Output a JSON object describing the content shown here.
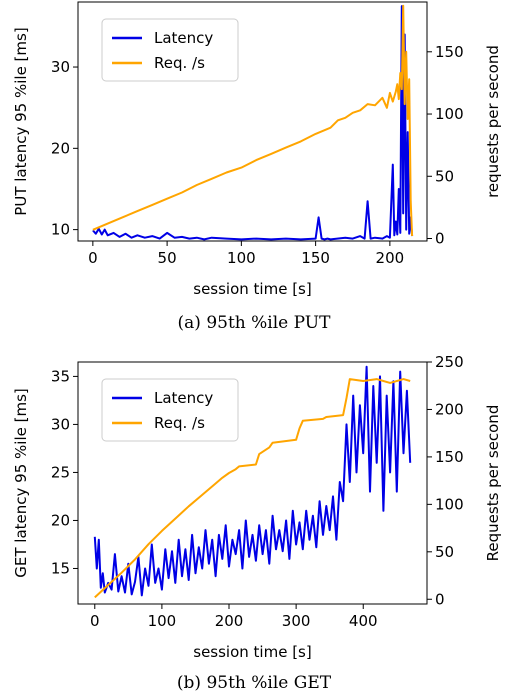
{
  "colors": {
    "latency": "#0000e6",
    "requests": "#ffa500"
  },
  "chart_data": [
    {
      "type": "line",
      "caption": "(a) 95th %ile PUT",
      "xlabel": "session time [s]",
      "ylabel_left": "PUT latency 95 %ile [ms]",
      "ylabel_right": "requests per second",
      "xlim": [
        -10,
        225
      ],
      "ylim_left": [
        8.6,
        38.0
      ],
      "ylim_right": [
        -2,
        190
      ],
      "xticks": [
        0,
        50,
        100,
        150,
        200
      ],
      "yticks_left": [
        10,
        20,
        30
      ],
      "yticks_right": [
        0,
        50,
        100,
        150
      ],
      "legend": {
        "position": "top-left",
        "entries": [
          "Latency",
          "Req. /s"
        ]
      },
      "series": [
        {
          "name": "Latency",
          "axis": "left",
          "x": [
            0,
            2,
            4,
            6,
            8,
            10,
            14,
            18,
            22,
            26,
            30,
            35,
            40,
            45,
            50,
            55,
            60,
            65,
            70,
            75,
            80,
            90,
            100,
            110,
            120,
            130,
            140,
            150,
            152,
            154,
            156,
            158,
            160,
            170,
            175,
            180,
            183,
            185,
            187,
            190,
            195,
            198,
            200,
            202,
            203,
            204,
            205,
            206,
            207,
            208,
            209,
            210,
            211,
            212,
            213,
            214,
            215
          ],
          "y": [
            9.9,
            9.5,
            10.1,
            9.4,
            10.0,
            9.3,
            9.6,
            9.1,
            9.5,
            9.0,
            9.3,
            9.0,
            9.2,
            8.9,
            9.6,
            9.0,
            9.1,
            8.9,
            9.0,
            8.8,
            9.0,
            8.9,
            8.8,
            8.9,
            8.8,
            8.9,
            8.8,
            8.9,
            11.5,
            8.9,
            8.8,
            8.9,
            8.8,
            9.0,
            8.9,
            9.2,
            8.9,
            13.5,
            8.9,
            9.0,
            8.9,
            9.2,
            9.0,
            18.0,
            9.3,
            11.0,
            9.4,
            15.0,
            9.6,
            37.5,
            12.0,
            34.0,
            10.0,
            22.0,
            9.5,
            11.5,
            9.2
          ]
        },
        {
          "name": "Req. /s",
          "axis": "right",
          "x": [
            0,
            10,
            20,
            30,
            40,
            50,
            60,
            70,
            80,
            90,
            100,
            110,
            120,
            130,
            140,
            150,
            160,
            165,
            170,
            175,
            180,
            185,
            190,
            195,
            198,
            200,
            202,
            204,
            205,
            206,
            207,
            208,
            209,
            210,
            211,
            212,
            213,
            214,
            215
          ],
          "y": [
            7,
            12,
            17,
            22,
            27,
            32,
            37,
            43,
            48,
            53,
            57,
            63,
            68,
            73,
            78,
            84,
            89,
            95,
            97,
            101,
            103,
            108,
            107,
            113,
            105,
            117,
            110,
            118,
            124,
            112,
            133,
            120,
            187,
            108,
            150,
            96,
            128,
            30,
            2
          ]
        }
      ]
    },
    {
      "type": "line",
      "caption": "(b) 95th %ile GET",
      "xlabel": "session time [s]",
      "ylabel_left": "GET latency 95 %ile [ms]",
      "ylabel_right": "Requests per second",
      "xlim": [
        -25,
        495
      ],
      "ylim_left": [
        11.3,
        36.5
      ],
      "ylim_right": [
        -5,
        250
      ],
      "xticks": [
        0,
        100,
        200,
        300,
        400
      ],
      "yticks_left": [
        15,
        20,
        25,
        30,
        35
      ],
      "yticks_right": [
        0,
        50,
        100,
        150,
        200,
        250
      ],
      "legend": {
        "position": "top-left",
        "entries": [
          "Latency",
          "Req. /s"
        ]
      },
      "series": [
        {
          "name": "Latency",
          "axis": "left",
          "x": [
            0,
            3,
            6,
            9,
            12,
            15,
            20,
            25,
            30,
            35,
            40,
            45,
            50,
            55,
            60,
            65,
            70,
            75,
            80,
            85,
            90,
            95,
            100,
            105,
            110,
            115,
            120,
            125,
            130,
            135,
            140,
            145,
            150,
            155,
            160,
            165,
            170,
            175,
            180,
            185,
            190,
            195,
            200,
            205,
            210,
            215,
            220,
            225,
            230,
            235,
            240,
            245,
            250,
            255,
            260,
            265,
            270,
            275,
            280,
            285,
            290,
            295,
            300,
            305,
            310,
            315,
            320,
            325,
            330,
            335,
            340,
            345,
            350,
            355,
            360,
            365,
            370,
            375,
            380,
            385,
            390,
            395,
            400,
            405,
            410,
            415,
            420,
            425,
            430,
            435,
            440,
            445,
            450,
            455,
            460,
            465,
            470
          ],
          "y": [
            18.3,
            15.0,
            18.0,
            13.0,
            14.5,
            12.5,
            13.5,
            12.8,
            16.5,
            12.6,
            14.2,
            12.5,
            15.5,
            12.3,
            13.6,
            16.2,
            12.2,
            15.0,
            13.2,
            17.5,
            13.5,
            15.0,
            12.8,
            17.0,
            14.0,
            16.8,
            13.5,
            18.0,
            14.2,
            17.0,
            13.8,
            18.5,
            14.5,
            17.2,
            15.0,
            19.0,
            15.5,
            18.0,
            14.2,
            18.5,
            16.0,
            19.5,
            15.2,
            18.0,
            16.5,
            19.0,
            15.0,
            20.0,
            16.2,
            18.5,
            15.8,
            19.5,
            16.5,
            19.0,
            15.5,
            20.5,
            17.0,
            19.0,
            16.8,
            20.0,
            16.0,
            21.0,
            17.5,
            19.8,
            17.0,
            21.0,
            18.0,
            20.5,
            17.2,
            22.0,
            18.5,
            21.5,
            19.0,
            22.5,
            18.0,
            24.0,
            22.0,
            30.0,
            24.0,
            33.0,
            25.0,
            32.0,
            27.0,
            36.0,
            23.0,
            34.0,
            26.0,
            35.0,
            21.0,
            33.0,
            25.0,
            34.5,
            23.0,
            35.5,
            27.0,
            33.5,
            26.0
          ]
        },
        {
          "name": "Req. /s",
          "axis": "right",
          "x": [
            0,
            20,
            40,
            60,
            80,
            100,
            120,
            140,
            160,
            180,
            190,
            200,
            210,
            215,
            240,
            245,
            260,
            265,
            300,
            305,
            310,
            340,
            345,
            370,
            375,
            380,
            400,
            420,
            440,
            460,
            470
          ],
          "y": [
            2,
            15,
            28,
            42,
            58,
            72,
            85,
            98,
            110,
            122,
            128,
            133,
            137,
            140,
            142,
            153,
            160,
            165,
            168,
            180,
            188,
            190,
            192,
            194,
            212,
            232,
            230,
            232,
            228,
            232,
            230
          ]
        }
      ]
    }
  ]
}
